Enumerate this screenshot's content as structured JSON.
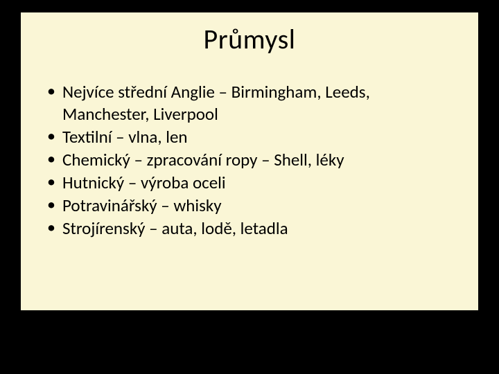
{
  "slide": {
    "background_color": "#faf6d6",
    "page_background": "#000000",
    "title": "Průmysl",
    "title_fontsize": 40,
    "title_color": "#000000",
    "body_fontsize": 25,
    "body_color": "#000000",
    "bullet_char": "•",
    "bullets": [
      "Nejvíce střední Anglie – Birmingham, Leeds, Manchester, Liverpool",
      "Textilní – vlna, len",
      "Chemický – zpracování ropy – Shell, léky",
      "Hutnický – výroba oceli",
      "Potravinářský – whisky",
      "Strojírenský – auta, lodě, letadla"
    ]
  }
}
